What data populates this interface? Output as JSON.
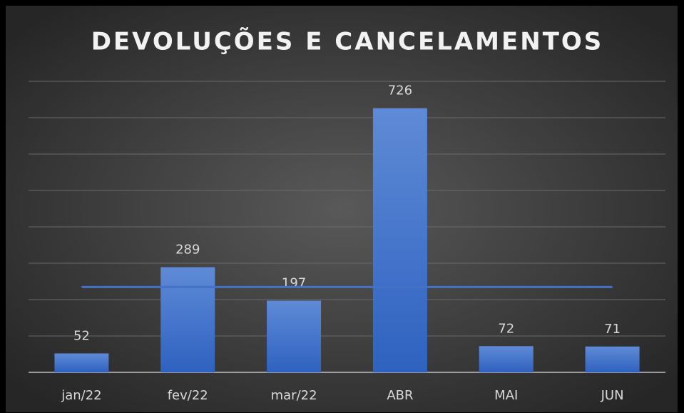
{
  "chart_data": {
    "type": "bar",
    "title": "DEVOLUÇÕES E CANCELAMENTOS",
    "categories": [
      "jan/22",
      "fev/22",
      "mar/22",
      "ABR",
      "MAI",
      "JUN"
    ],
    "values": [
      52,
      289,
      197,
      726,
      72,
      71
    ],
    "color": "#4472c4",
    "ylim": [
      0,
      800
    ],
    "yticks": [
      0,
      100,
      200,
      300,
      400,
      500,
      600,
      700,
      800
    ],
    "show_ytick_labels": false,
    "grid": true,
    "reference_line": 234.5,
    "reference_line_color": "#4472c4"
  }
}
